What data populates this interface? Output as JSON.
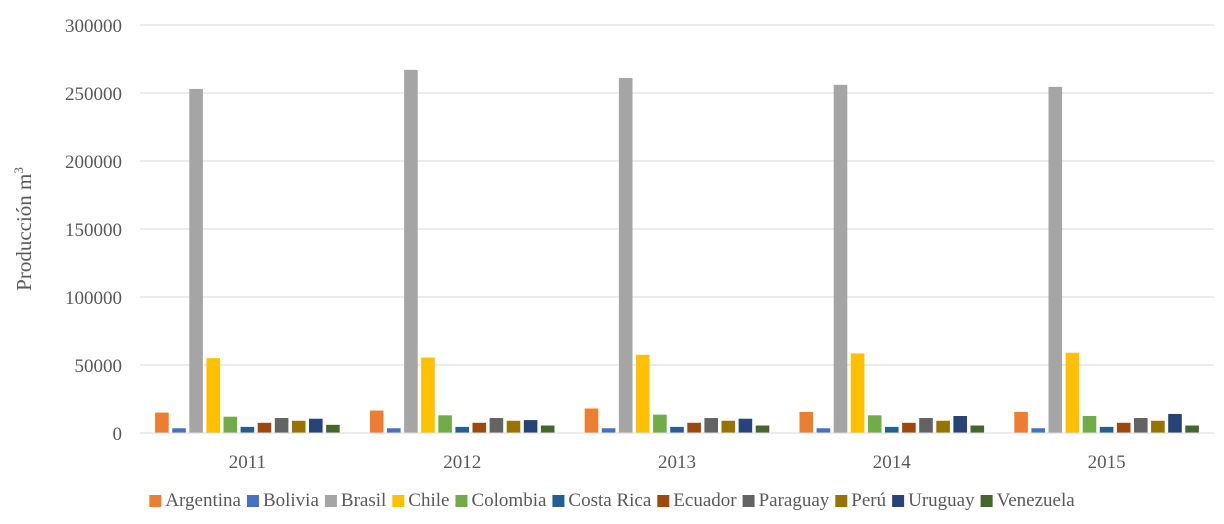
{
  "chart_data": {
    "type": "bar",
    "ylabel": "Producción m",
    "ylabel_superscript": "3",
    "ylim": [
      0,
      300000
    ],
    "yticks": [
      "0",
      "50000",
      "100000",
      "150000",
      "200000",
      "250000",
      "300000"
    ],
    "categories": [
      "2011",
      "2012",
      "2013",
      "2014",
      "2015"
    ],
    "grid": true,
    "legend_position": "bottom",
    "series": [
      {
        "name": "Argentina",
        "color": "#ED7D31",
        "values": [
          15000,
          16500,
          18000,
          15500,
          15500
        ]
      },
      {
        "name": "Bolivia",
        "color": "#4472C4",
        "values": [
          3500,
          3500,
          3500,
          3500,
          3500
        ]
      },
      {
        "name": "Brasil",
        "color": "#A5A5A5",
        "values": [
          253000,
          267000,
          261000,
          256000,
          254500
        ]
      },
      {
        "name": "Chile",
        "color": "#FFC000",
        "values": [
          55000,
          55500,
          57500,
          58500,
          59000
        ]
      },
      {
        "name": "Colombia",
        "color": "#70AD47",
        "values": [
          12000,
          13000,
          13500,
          13000,
          12500
        ]
      },
      {
        "name": "Costa Rica",
        "color": "#255E91",
        "values": [
          4500,
          4500,
          4500,
          4500,
          4500
        ]
      },
      {
        "name": "Ecuador",
        "color": "#9E480E",
        "values": [
          7500,
          7500,
          7500,
          7500,
          7500
        ]
      },
      {
        "name": "Paraguay",
        "color": "#636363",
        "values": [
          11000,
          11000,
          11000,
          11000,
          11000
        ]
      },
      {
        "name": "Perú",
        "color": "#997300",
        "values": [
          9000,
          9000,
          9000,
          9000,
          9000
        ]
      },
      {
        "name": "Uruguay",
        "color": "#264478",
        "values": [
          10500,
          9500,
          10500,
          12500,
          14000
        ]
      },
      {
        "name": "Venezuela",
        "color": "#43682B",
        "values": [
          6000,
          5500,
          5500,
          5500,
          5500
        ]
      }
    ]
  }
}
